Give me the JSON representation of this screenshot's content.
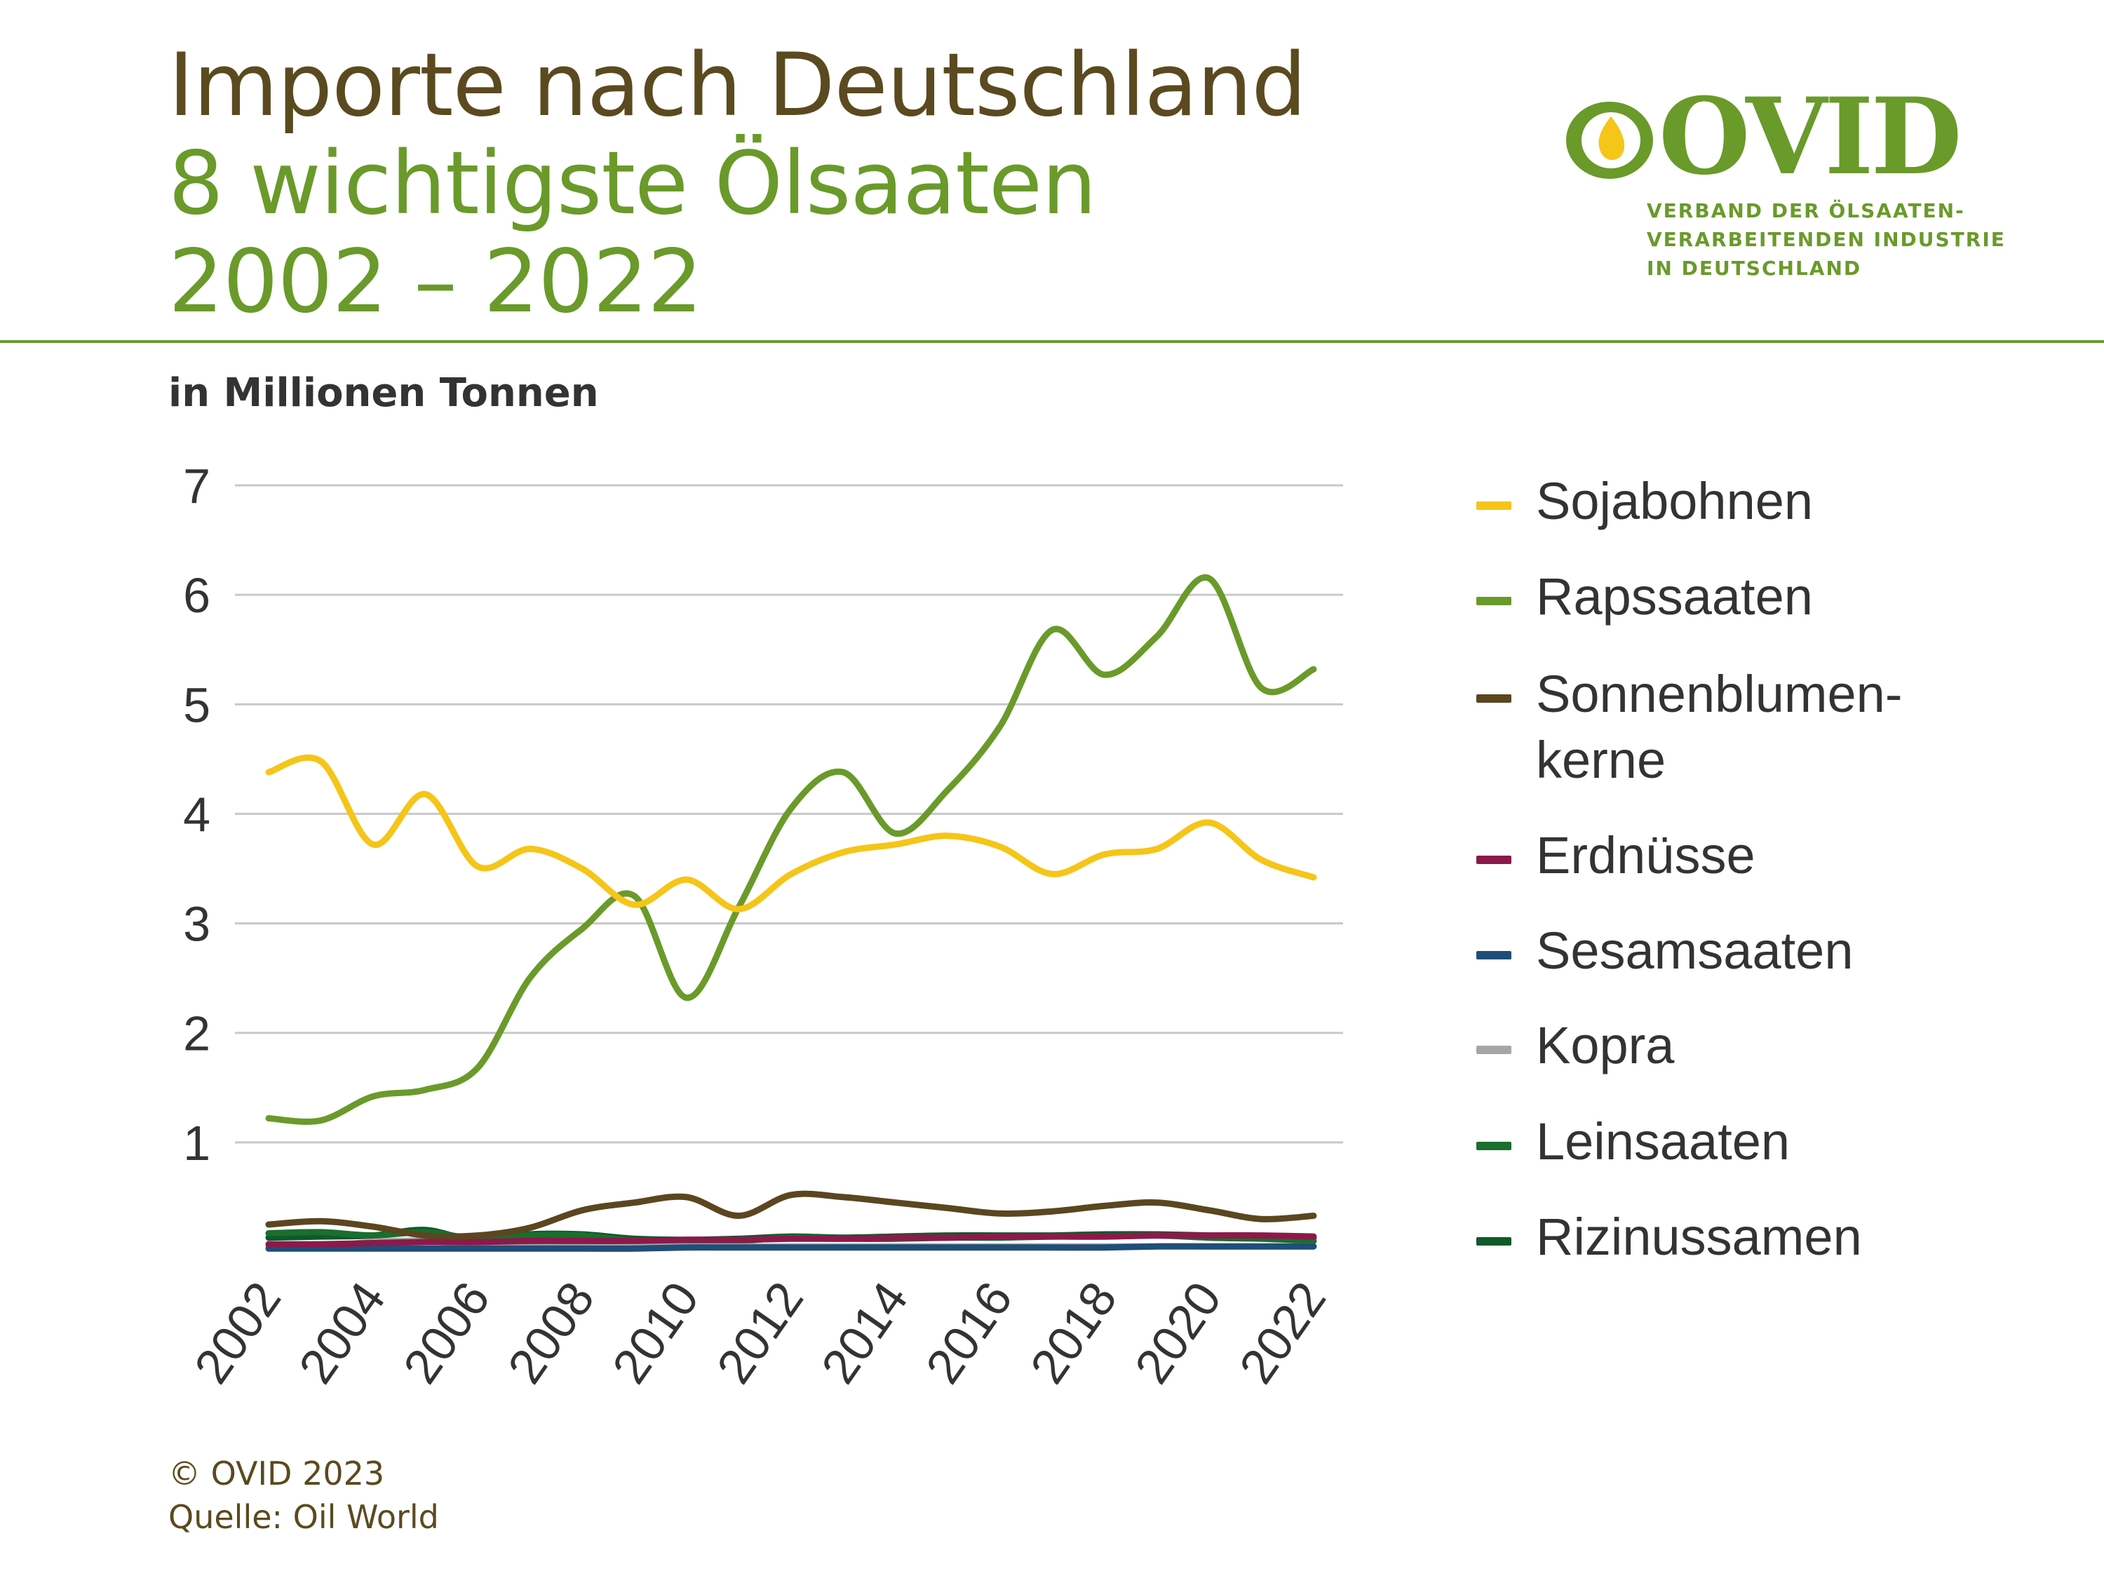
{
  "header": {
    "title_line1": "Importe nach Deutschland",
    "title_line2": "8 wichtigste Ölsaaten",
    "title_line3": "2002 – 2022"
  },
  "logo": {
    "name": "OVID",
    "tagline_line1": "VERBAND DER ÖLSAATEN-",
    "tagline_line2": "VERARBEITENDEN INDUSTRIE",
    "tagline_line3": "IN DEUTSCHLAND"
  },
  "unit_label": "in Millionen Tonnen",
  "footer": {
    "copyright": "© OVID 2023",
    "source": "Quelle: Oil World"
  },
  "chart_data": {
    "type": "line",
    "title": "Importe nach Deutschland 8 wichtigste Ölsaaten 2002 – 2022",
    "ylabel": "in Millionen Tonnen",
    "xlabel": "",
    "ylim": [
      0,
      7
    ],
    "yticks": [
      1,
      2,
      3,
      4,
      5,
      6,
      7
    ],
    "xtick_labels": [
      "2002",
      "2004",
      "2006",
      "2008",
      "2010",
      "2012",
      "2014",
      "2016",
      "2018",
      "2020",
      "2022"
    ],
    "grid": true,
    "legend_position": "right",
    "x": [
      2002,
      2003,
      2004,
      2005,
      2006,
      2007,
      2008,
      2009,
      2010,
      2011,
      2012,
      2013,
      2014,
      2015,
      2016,
      2017,
      2018,
      2019,
      2020,
      2021,
      2022
    ],
    "series": [
      {
        "name": "Sojabohnen",
        "color": "#f5c518",
        "values": [
          4.38,
          4.48,
          3.72,
          4.18,
          3.52,
          3.68,
          3.5,
          3.17,
          3.4,
          3.13,
          3.45,
          3.65,
          3.72,
          3.8,
          3.7,
          3.45,
          3.63,
          3.68,
          3.92,
          3.58,
          3.42
        ]
      },
      {
        "name": "Rapssaaten",
        "color": "#6a9a2a",
        "values": [
          1.22,
          1.2,
          1.42,
          1.48,
          1.68,
          2.5,
          2.95,
          3.25,
          2.32,
          3.15,
          4.05,
          4.38,
          3.82,
          4.22,
          4.8,
          5.68,
          5.27,
          5.62,
          6.15,
          5.15,
          5.32
        ]
      },
      {
        "name": "Sonnenblumenkerne",
        "label": "Sonnenblumen-\nkerne",
        "color": "#5b4620",
        "values": [
          0.25,
          0.28,
          0.23,
          0.15,
          0.15,
          0.22,
          0.38,
          0.45,
          0.5,
          0.33,
          0.52,
          0.5,
          0.45,
          0.4,
          0.35,
          0.37,
          0.42,
          0.45,
          0.38,
          0.3,
          0.33
        ]
      },
      {
        "name": "Erdnüsse",
        "color": "#8b1a4a",
        "values": [
          0.07,
          0.07,
          0.08,
          0.09,
          0.09,
          0.1,
          0.1,
          0.1,
          0.11,
          0.11,
          0.12,
          0.12,
          0.13,
          0.13,
          0.14,
          0.14,
          0.14,
          0.15,
          0.15,
          0.15,
          0.14
        ]
      },
      {
        "name": "Sesamsaaten",
        "color": "#1f4e79",
        "values": [
          0.03,
          0.03,
          0.03,
          0.03,
          0.03,
          0.03,
          0.03,
          0.03,
          0.04,
          0.04,
          0.04,
          0.04,
          0.04,
          0.04,
          0.04,
          0.04,
          0.04,
          0.05,
          0.05,
          0.05,
          0.05
        ]
      },
      {
        "name": "Kopra",
        "color": "#a6a6a6",
        "values": [
          0.05,
          0.05,
          0.09,
          0.1,
          0.06,
          0.06,
          0.06,
          0.05,
          0.05,
          0.05,
          0.05,
          0.05,
          0.05,
          0.05,
          0.05,
          0.05,
          0.05,
          0.05,
          0.05,
          0.05,
          0.05
        ]
      },
      {
        "name": "Leinsaaten",
        "color": "#1a6e2e",
        "values": [
          0.17,
          0.18,
          0.15,
          0.18,
          0.12,
          0.15,
          0.15,
          0.1,
          0.08,
          0.1,
          0.13,
          0.12,
          0.12,
          0.13,
          0.13,
          0.14,
          0.14,
          0.15,
          0.13,
          0.12,
          0.1
        ]
      },
      {
        "name": "Rizinussamen",
        "color": "#0e5a2a",
        "values": [
          0.13,
          0.14,
          0.15,
          0.2,
          0.1,
          0.16,
          0.16,
          0.12,
          0.11,
          0.12,
          0.14,
          0.13,
          0.14,
          0.15,
          0.15,
          0.15,
          0.16,
          0.16,
          0.15,
          0.14,
          0.13
        ]
      }
    ]
  }
}
